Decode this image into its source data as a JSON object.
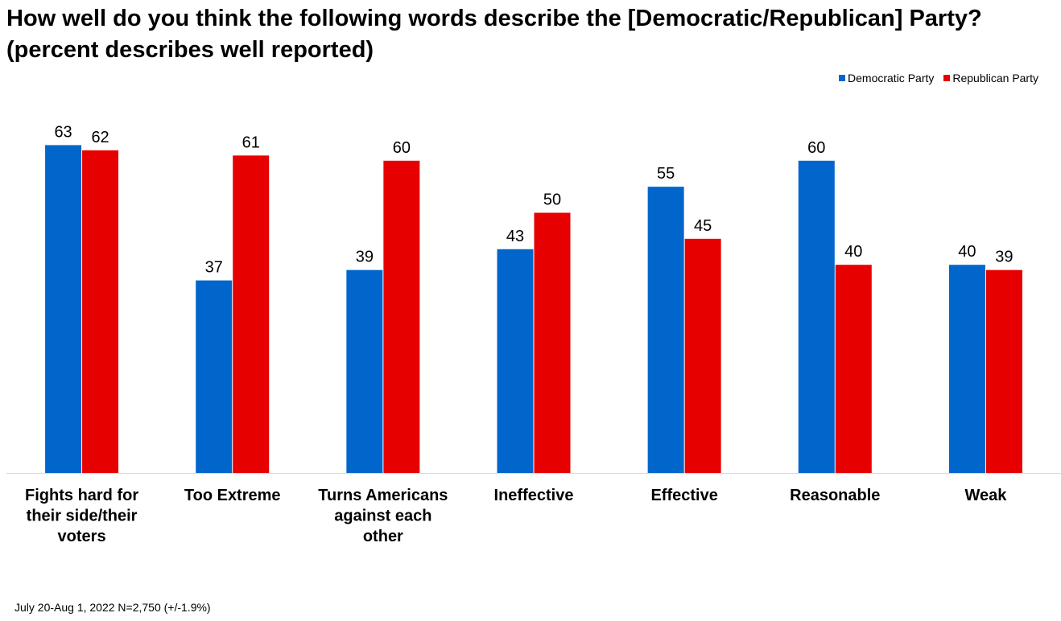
{
  "title": "How well do you think the following words describe the [Democratic/Republican] Party? (percent describes well reported)",
  "footnote": "July 20-Aug 1, 2022   N=2,750 (+/-1.9%)",
  "chart_data": {
    "type": "bar",
    "title": "How well do you think the following words describe the [Democratic/Republican] Party? (percent describes well reported)",
    "xlabel": "",
    "ylabel": "",
    "ylim": [
      0,
      70
    ],
    "grid": false,
    "legend_position": "top-right",
    "categories": [
      "Fights hard for their side/their voters",
      "Too Extreme",
      "Turns Americans against each other",
      "Ineffective",
      "Effective",
      "Reasonable",
      "Weak"
    ],
    "category_lines": [
      [
        "Fights hard for",
        "their side/their",
        "voters"
      ],
      [
        "Too Extreme"
      ],
      [
        "Turns Americans",
        "against each",
        "other"
      ],
      [
        "Ineffective"
      ],
      [
        "Effective"
      ],
      [
        "Reasonable"
      ],
      [
        "Weak"
      ]
    ],
    "series": [
      {
        "name": "Democratic Party",
        "color": "#0066CC",
        "values": [
          63,
          37,
          39,
          43,
          55,
          60,
          40
        ]
      },
      {
        "name": "Republican Party",
        "color": "#E60000",
        "values": [
          62,
          61,
          60,
          50,
          45,
          40,
          39
        ]
      }
    ]
  }
}
